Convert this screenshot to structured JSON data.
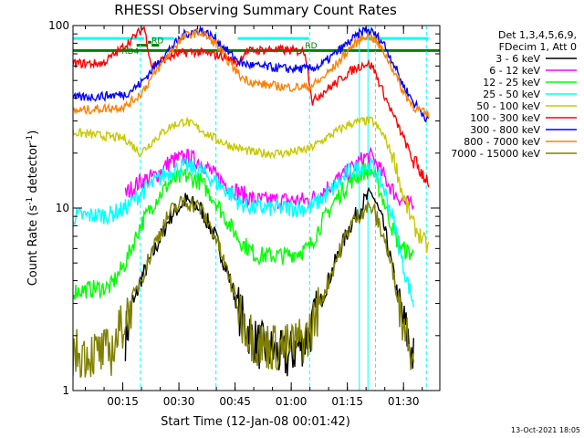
{
  "chart_data": {
    "type": "line",
    "title": "RHESSI Observing Summary Count Rates",
    "xlabel": "Start Time (12-Jan-08 00:01:42)",
    "ylabel_main": "Count Rate (s",
    "ylabel_sup": "-1",
    "ylabel_tail": " detector",
    "ylabel_close": ")",
    "y_scale": "log",
    "ylim": [
      1,
      100
    ],
    "xlim_minutes": [
      0,
      98
    ],
    "x_ticks": [
      {
        "label": "00:15",
        "min": 13.3
      },
      {
        "label": "00:30",
        "min": 28.3
      },
      {
        "label": "00:45",
        "min": 43.3
      },
      {
        "label": "01:00",
        "min": 58.3
      },
      {
        "label": "01:15",
        "min": 73.3
      },
      {
        "label": "01:30",
        "min": 88.3
      }
    ],
    "y_ticks": [
      {
        "label": "1",
        "value": 1
      },
      {
        "label": "10",
        "value": 10
      },
      {
        "label": "100",
        "value": 100
      }
    ],
    "legend_header": [
      "Det 1,3,4,5,6,9,",
      "FDecim 1, Att 0"
    ],
    "legend_placement": "right",
    "timestamp": "13-Oct-2021 18:05",
    "annotations": [
      {
        "label": "RD4",
        "min": 13,
        "value": 70
      },
      {
        "label": "RD",
        "min": 21,
        "value": 80
      },
      {
        "label": "RD",
        "min": 62,
        "value": 75
      }
    ],
    "vlines_dashed": [
      18.0,
      38.2,
      63.2,
      80.8,
      94.4
    ],
    "vlines_solid": [
      76.5,
      78.8
    ],
    "flag_lines": [
      {
        "color": "#00ffff",
        "segments": [
          [
            0,
            19,
            85
          ],
          [
            21,
            27,
            85
          ],
          [
            44,
            63,
            85
          ],
          [
            78,
            95,
            85
          ]
        ]
      },
      {
        "color": "#008000",
        "segments": [
          [
            0,
            98,
            73
          ]
        ]
      },
      {
        "color": "#008000",
        "segments": [
          [
            17,
            20,
            78
          ],
          [
            20,
            21,
            81
          ],
          [
            21,
            23,
            78
          ]
        ]
      }
    ],
    "series": [
      {
        "name": "3 - 6 keV",
        "color": "#000000",
        "points": [
          [
            14,
            2
          ],
          [
            18,
            4
          ],
          [
            22,
            6
          ],
          [
            26,
            9
          ],
          [
            30,
            11
          ],
          [
            34,
            10
          ],
          [
            38,
            7
          ],
          [
            42,
            4
          ],
          [
            45,
            2.5
          ],
          [
            49,
            1.8
          ],
          [
            57,
            1.5
          ],
          [
            63,
            2
          ],
          [
            66,
            3
          ],
          [
            70,
            5
          ],
          [
            74,
            8
          ],
          [
            78,
            11
          ],
          [
            80,
            12
          ],
          [
            83,
            8
          ],
          [
            86,
            4
          ],
          [
            88,
            2.5
          ],
          [
            91,
            1.5
          ]
        ]
      },
      {
        "name": "6 - 12 keV",
        "color": "#ff00ff",
        "points": [
          [
            14,
            12
          ],
          [
            18,
            14
          ],
          [
            22,
            15
          ],
          [
            26,
            18
          ],
          [
            30,
            19
          ],
          [
            34,
            18
          ],
          [
            38,
            15
          ],
          [
            42,
            13
          ],
          [
            45,
            12
          ],
          [
            49,
            11
          ],
          [
            57,
            11
          ],
          [
            63,
            11
          ],
          [
            66,
            12
          ],
          [
            70,
            14
          ],
          [
            74,
            16
          ],
          [
            78,
            19
          ],
          [
            80,
            19
          ],
          [
            83,
            15
          ],
          [
            86,
            12
          ],
          [
            88,
            11
          ],
          [
            91,
            10
          ]
        ]
      },
      {
        "name": "12 - 25 keV",
        "color": "#00ff00",
        "points": [
          [
            0,
            3.5
          ],
          [
            10,
            3.7
          ],
          [
            14,
            5
          ],
          [
            18,
            8
          ],
          [
            22,
            11
          ],
          [
            26,
            14
          ],
          [
            30,
            15
          ],
          [
            34,
            14
          ],
          [
            38,
            11
          ],
          [
            42,
            8
          ],
          [
            45,
            6.5
          ],
          [
            49,
            5.5
          ],
          [
            57,
            5.5
          ],
          [
            63,
            6
          ],
          [
            66,
            8
          ],
          [
            70,
            11
          ],
          [
            74,
            14
          ],
          [
            78,
            16
          ],
          [
            80,
            16
          ],
          [
            83,
            11
          ],
          [
            86,
            7
          ],
          [
            88,
            6
          ],
          [
            91,
            5.5
          ]
        ]
      },
      {
        "name": "25 - 50 keV",
        "color": "#00ffff",
        "points": [
          [
            0,
            9
          ],
          [
            10,
            9.2
          ],
          [
            14,
            10
          ],
          [
            18,
            12
          ],
          [
            22,
            14
          ],
          [
            26,
            16
          ],
          [
            30,
            17
          ],
          [
            34,
            16
          ],
          [
            38,
            14
          ],
          [
            42,
            12
          ],
          [
            45,
            10.5
          ],
          [
            49,
            10
          ],
          [
            57,
            10
          ],
          [
            63,
            10
          ],
          [
            66,
            11
          ],
          [
            70,
            13
          ],
          [
            74,
            16
          ],
          [
            78,
            17
          ],
          [
            80,
            17
          ],
          [
            83,
            13
          ],
          [
            86,
            8
          ],
          [
            88,
            5
          ],
          [
            91,
            3
          ]
        ]
      },
      {
        "name": "50 - 100 keV",
        "color": "#c8c800",
        "points": [
          [
            0,
            26
          ],
          [
            14,
            24
          ],
          [
            18,
            20
          ],
          [
            22,
            24
          ],
          [
            26,
            28
          ],
          [
            30,
            30
          ],
          [
            34,
            27
          ],
          [
            38,
            24
          ],
          [
            42,
            22
          ],
          [
            45,
            21
          ],
          [
            49,
            20
          ],
          [
            57,
            20
          ],
          [
            63,
            21
          ],
          [
            66,
            23
          ],
          [
            70,
            26
          ],
          [
            74,
            29
          ],
          [
            78,
            30
          ],
          [
            80,
            30
          ],
          [
            83,
            25
          ],
          [
            86,
            18
          ],
          [
            88,
            12
          ],
          [
            91,
            8
          ],
          [
            95,
            6
          ]
        ]
      },
      {
        "name": "100 - 300 keV",
        "color": "#ff0000",
        "points": [
          [
            0,
            62
          ],
          [
            8,
            62
          ],
          [
            12,
            72
          ],
          [
            16,
            85
          ],
          [
            19,
            98
          ],
          [
            21,
            60
          ],
          [
            24,
            65
          ],
          [
            28,
            70
          ],
          [
            32,
            72
          ],
          [
            36,
            70
          ],
          [
            40,
            68
          ],
          [
            44,
            62
          ],
          [
            46,
            72
          ],
          [
            52,
            74
          ],
          [
            58,
            73
          ],
          [
            62,
            72
          ],
          [
            64,
            38
          ],
          [
            66,
            42
          ],
          [
            70,
            48
          ],
          [
            74,
            56
          ],
          [
            78,
            62
          ],
          [
            80,
            60
          ],
          [
            84,
            38
          ],
          [
            88,
            25
          ],
          [
            91,
            18
          ],
          [
            95,
            14
          ]
        ]
      },
      {
        "name": "300 - 800 keV",
        "color": "#0000ff",
        "points": [
          [
            0,
            40
          ],
          [
            14,
            42
          ],
          [
            18,
            48
          ],
          [
            22,
            60
          ],
          [
            26,
            75
          ],
          [
            30,
            90
          ],
          [
            34,
            95
          ],
          [
            38,
            85
          ],
          [
            42,
            70
          ],
          [
            45,
            62
          ],
          [
            49,
            60
          ],
          [
            57,
            58
          ],
          [
            63,
            58
          ],
          [
            66,
            60
          ],
          [
            70,
            70
          ],
          [
            74,
            82
          ],
          [
            78,
            95
          ],
          [
            80,
            92
          ],
          [
            83,
            80
          ],
          [
            86,
            60
          ],
          [
            88,
            48
          ],
          [
            91,
            38
          ],
          [
            95,
            30
          ]
        ]
      },
      {
        "name": "800 - 7000 keV",
        "color": "#ff8000",
        "points": [
          [
            0,
            34
          ],
          [
            14,
            36
          ],
          [
            18,
            42
          ],
          [
            22,
            55
          ],
          [
            26,
            72
          ],
          [
            30,
            88
          ],
          [
            34,
            92
          ],
          [
            38,
            80
          ],
          [
            42,
            62
          ],
          [
            45,
            52
          ],
          [
            49,
            48
          ],
          [
            57,
            46
          ],
          [
            63,
            46
          ],
          [
            66,
            50
          ],
          [
            70,
            60
          ],
          [
            74,
            75
          ],
          [
            78,
            88
          ],
          [
            80,
            86
          ],
          [
            83,
            72
          ],
          [
            86,
            55
          ],
          [
            88,
            44
          ],
          [
            91,
            36
          ],
          [
            95,
            32
          ]
        ]
      },
      {
        "name": "7000 - 15000 keV",
        "color": "#808000",
        "points": [
          [
            0,
            1.6
          ],
          [
            10,
            1.6
          ],
          [
            14,
            2.5
          ],
          [
            18,
            4
          ],
          [
            22,
            6.5
          ],
          [
            26,
            9.5
          ],
          [
            30,
            11
          ],
          [
            34,
            10
          ],
          [
            38,
            7
          ],
          [
            42,
            4
          ],
          [
            45,
            2.5
          ],
          [
            49,
            1.8
          ],
          [
            57,
            1.7
          ],
          [
            63,
            2
          ],
          [
            66,
            3
          ],
          [
            70,
            5
          ],
          [
            74,
            8
          ],
          [
            78,
            10
          ],
          [
            80,
            10
          ],
          [
            83,
            7
          ],
          [
            86,
            4
          ],
          [
            88,
            2.5
          ],
          [
            91,
            1.6
          ]
        ]
      }
    ]
  }
}
